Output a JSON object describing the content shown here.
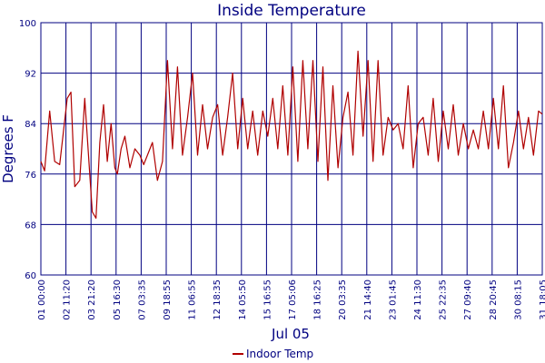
{
  "colors": {
    "series": "#b00000",
    "grid": "#000080",
    "text": "#000080",
    "background": "#ffffff"
  },
  "chart_data": {
    "type": "line",
    "title": "Inside Temperature",
    "xlabel": "Jul 05",
    "ylabel": "Degrees F",
    "ylim": [
      60,
      100
    ],
    "y_ticks": [
      60,
      68,
      76,
      84,
      92,
      100
    ],
    "grid": true,
    "legend_position": "bottom-center",
    "x_tick_labels": [
      "01 00:00",
      "02 11:20",
      "03 21:20",
      "05 16:30",
      "07 03:35",
      "09 18:55",
      "11 06:55",
      "12 18:35",
      "14 05:50",
      "15 16:55",
      "17 05:06",
      "18 16:25",
      "20 03:35",
      "21 14:40",
      "23 01:45",
      "24 11:30",
      "25 22:35",
      "27 09:40",
      "28 20:45",
      "30 08:15",
      "31 18:05"
    ],
    "series": [
      {
        "name": "Indoor Temp",
        "x_index": [
          0.0,
          0.15,
          0.35,
          0.55,
          0.75,
          1.05,
          1.2,
          1.35,
          1.55,
          1.75,
          1.95,
          2.05,
          2.2,
          2.35,
          2.5,
          2.65,
          2.8,
          2.95,
          3.05,
          3.2,
          3.35,
          3.55,
          3.75,
          3.95,
          4.1,
          4.25,
          4.45,
          4.65,
          4.85,
          5.05,
          5.25,
          5.45,
          5.65,
          5.85,
          6.05,
          6.25,
          6.45,
          6.65,
          6.85,
          7.05,
          7.25,
          7.45,
          7.65,
          7.85,
          8.05,
          8.25,
          8.45,
          8.65,
          8.85,
          9.05,
          9.25,
          9.45,
          9.65,
          9.85,
          10.05,
          10.25,
          10.45,
          10.65,
          10.85,
          11.05,
          11.25,
          11.45,
          11.65,
          11.85,
          12.05,
          12.25,
          12.45,
          12.65,
          12.85,
          13.05,
          13.25,
          13.45,
          13.65,
          13.85,
          14.05,
          14.25,
          14.45,
          14.65,
          14.85,
          15.05,
          15.25,
          15.45,
          15.65,
          15.85,
          16.05,
          16.25,
          16.45,
          16.65,
          16.85,
          17.05,
          17.25,
          17.45,
          17.65,
          17.85,
          18.05,
          18.25,
          18.45,
          18.65,
          18.85,
          19.05,
          19.25,
          19.45,
          19.65,
          19.85,
          20.0
        ],
        "values": [
          78,
          76.5,
          86,
          78,
          77.5,
          88,
          89,
          74,
          75,
          88,
          76,
          70,
          69,
          81,
          87,
          78,
          84,
          77,
          76,
          80,
          82,
          77,
          80,
          79,
          77.5,
          79,
          81,
          75,
          78,
          94,
          80,
          93,
          79,
          85,
          92,
          79,
          87,
          80,
          85,
          87,
          79,
          85,
          92,
          80,
          88,
          80,
          86,
          79,
          86,
          82,
          88,
          80,
          90,
          79,
          93,
          78,
          94,
          80,
          94,
          78,
          93,
          75,
          90,
          77,
          85,
          89,
          79,
          95.5,
          82,
          94,
          78,
          94,
          79,
          85,
          83,
          84,
          80,
          90,
          77,
          84,
          85,
          79,
          88,
          78,
          86,
          80,
          87,
          79,
          84,
          80,
          83,
          80,
          86,
          80,
          88,
          80,
          90,
          77,
          81,
          86,
          80,
          85,
          79,
          86,
          85.5
        ]
      }
    ]
  }
}
